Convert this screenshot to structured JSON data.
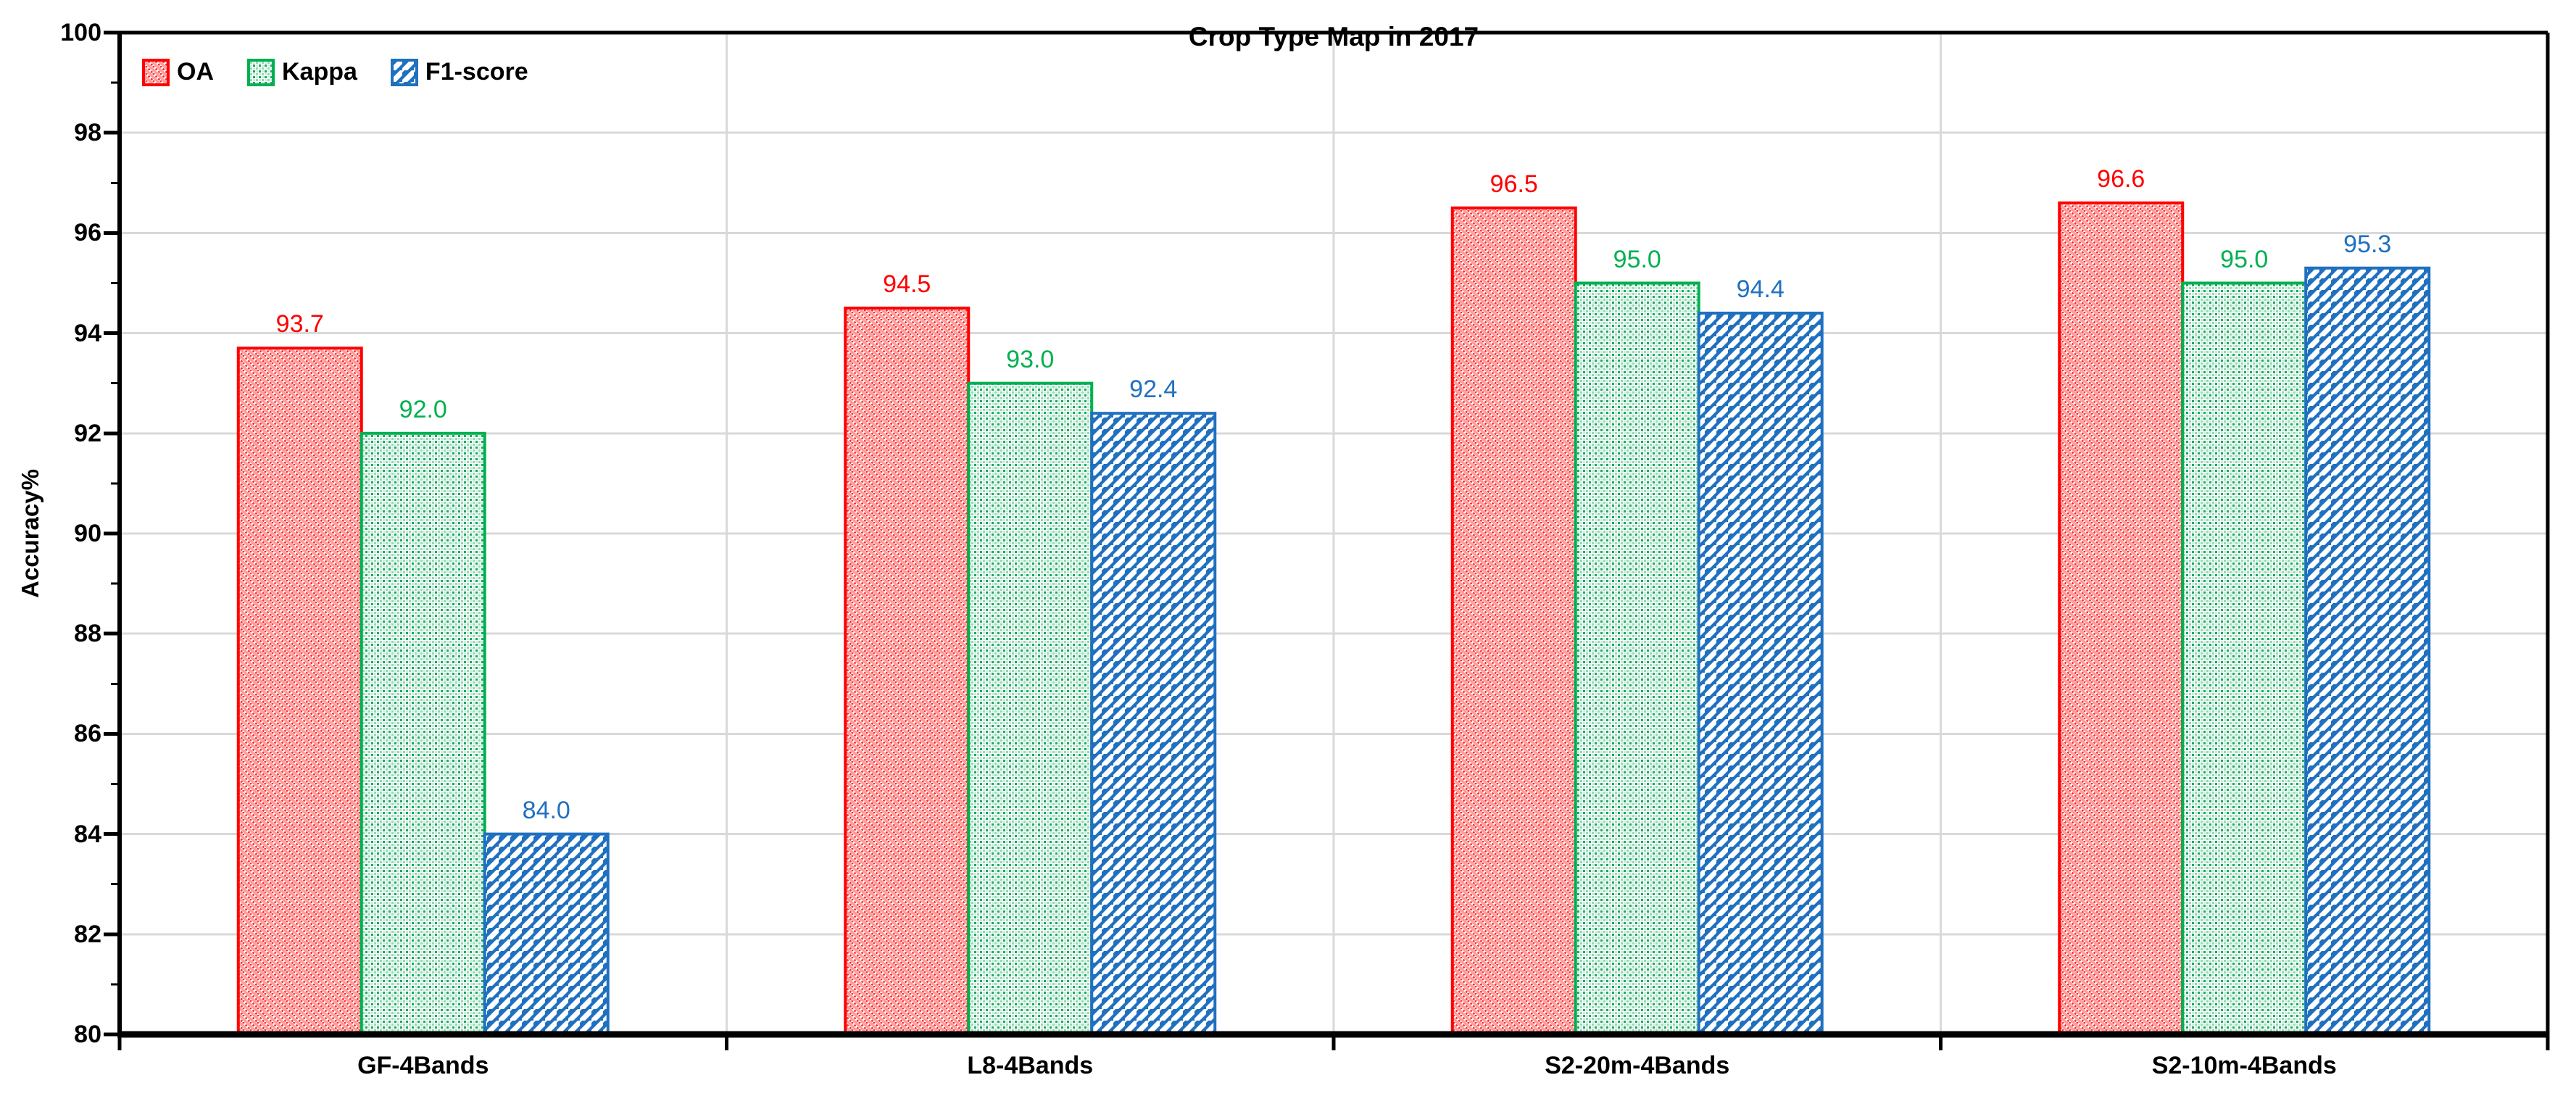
{
  "chart_data": {
    "type": "bar",
    "title": "Crop Type Map in 2017",
    "ylabel": "Accuracy%",
    "xlabel": "",
    "ylim": [
      80,
      100
    ],
    "yticks": [
      80,
      82,
      84,
      86,
      88,
      90,
      92,
      94,
      96,
      98,
      100
    ],
    "grid": true,
    "gridline_color": "#D9D9D9",
    "legend_position": "top-left-inside",
    "categories": [
      "GF-4Bands",
      "L8-4Bands",
      "S2-20m-4Bands",
      "S2-10m-4Bands"
    ],
    "series": [
      {
        "name": "OA",
        "color": "#FF0000",
        "hatch": "diagonal-down",
        "values": [
          93.7,
          94.5,
          96.5,
          96.6
        ]
      },
      {
        "name": "Kappa",
        "color": "#00B050",
        "hatch": "dots-grid",
        "values": [
          92.0,
          93.0,
          95.0,
          95.0
        ]
      },
      {
        "name": "F1-score",
        "color": "#2070C0",
        "hatch": "diagonal-up",
        "values": [
          84.0,
          92.4,
          94.4,
          95.3
        ]
      }
    ],
    "data_labels_decimals": 1
  }
}
